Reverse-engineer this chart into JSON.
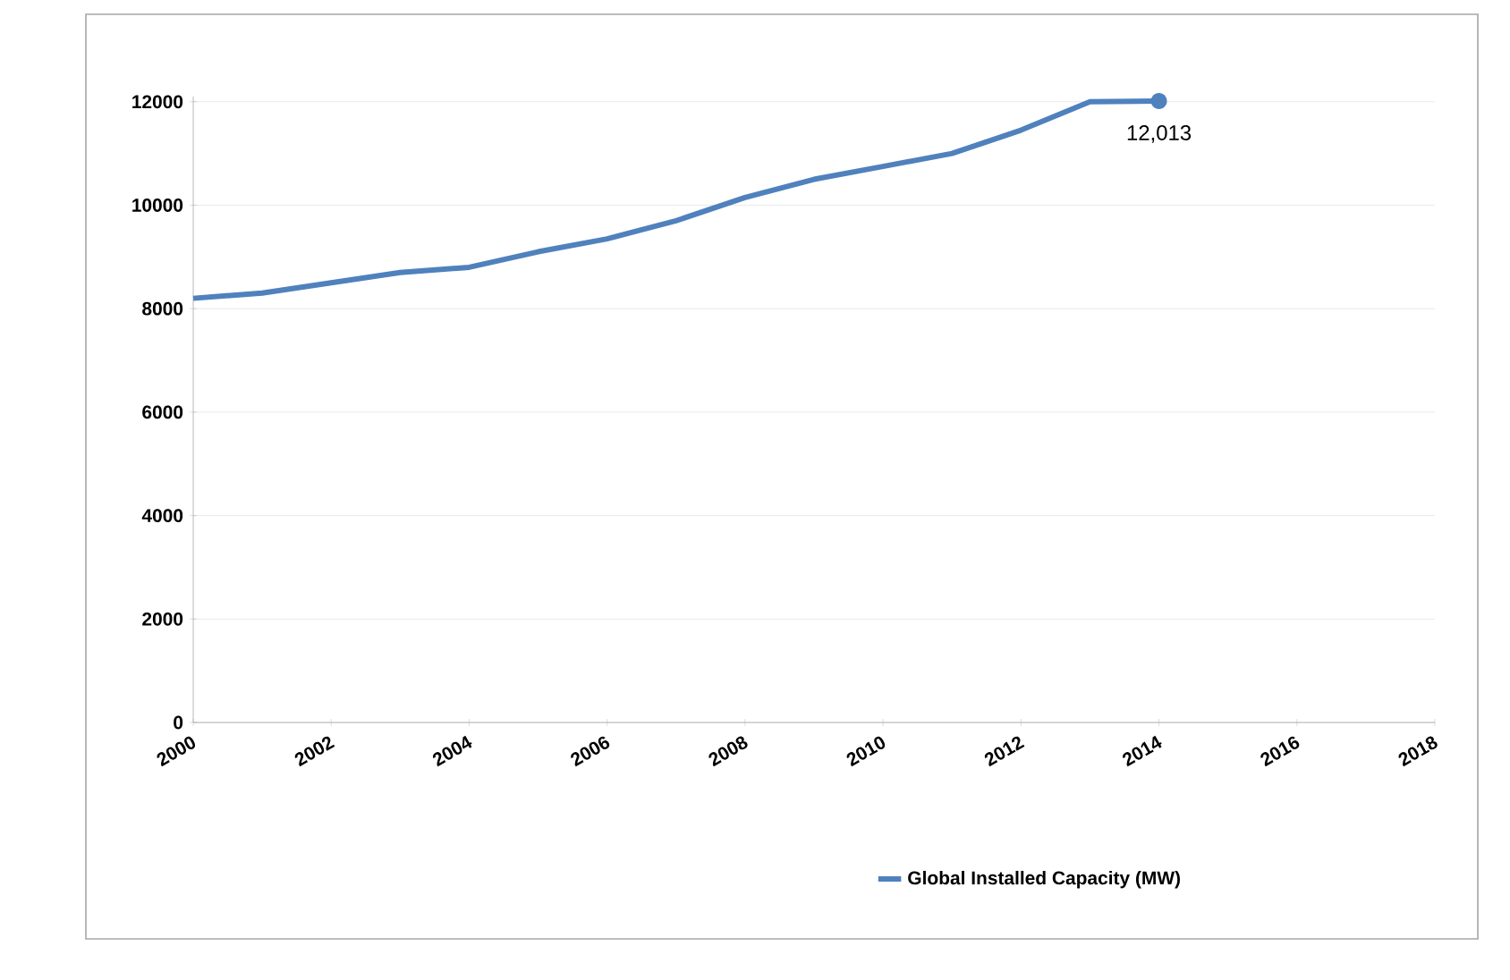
{
  "chart_data": {
    "type": "line",
    "x": [
      2000,
      2001,
      2002,
      2003,
      2004,
      2005,
      2006,
      2007,
      2008,
      2009,
      2010,
      2011,
      2012,
      2013,
      2014
    ],
    "series": [
      {
        "name": "Global Installed Capacity (MW)",
        "color": "#4f81bd",
        "values": [
          8200,
          8300,
          8500,
          8700,
          8800,
          9100,
          9350,
          9700,
          10150,
          10500,
          10750,
          11000,
          11450,
          12000,
          12013
        ]
      }
    ],
    "xlim": [
      2000,
      2018
    ],
    "xticks": [
      2000,
      2002,
      2004,
      2006,
      2008,
      2010,
      2012,
      2014,
      2016,
      2018
    ],
    "ylim": [
      0,
      12100
    ],
    "yticks": [
      0,
      2000,
      4000,
      6000,
      8000,
      10000,
      12000
    ],
    "grid": "y",
    "legend": "bottom right",
    "annotations": [
      {
        "text": "12,013",
        "x": 2014,
        "y": 12013
      }
    ]
  }
}
